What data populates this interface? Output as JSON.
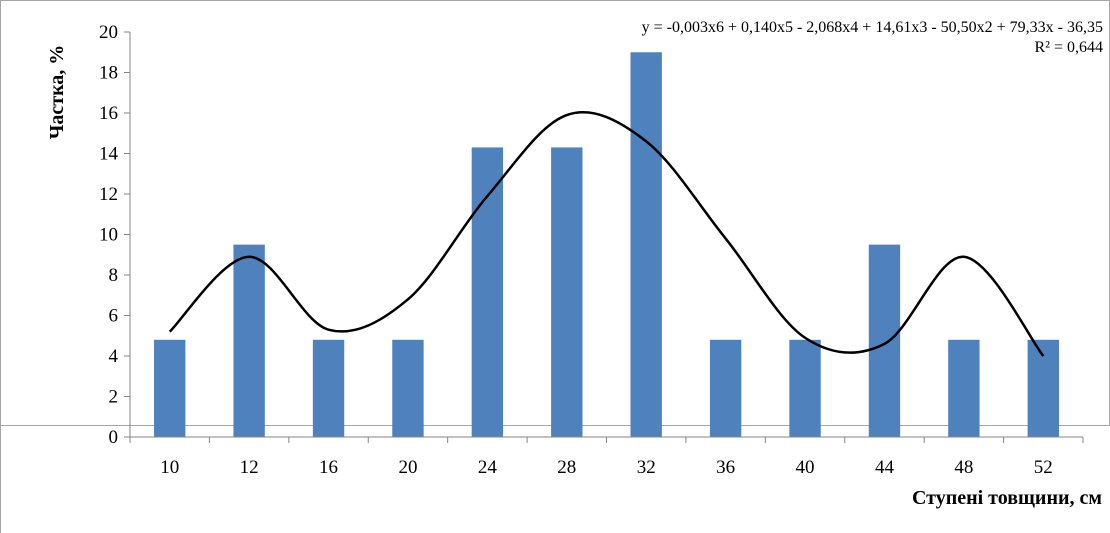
{
  "chart_data": {
    "type": "bar",
    "categories": [
      "10",
      "12",
      "16",
      "20",
      "24",
      "28",
      "32",
      "36",
      "40",
      "44",
      "48",
      "52"
    ],
    "values": [
      4.8,
      9.5,
      4.8,
      4.8,
      14.3,
      14.3,
      19.0,
      4.8,
      4.8,
      9.5,
      4.8,
      4.8
    ],
    "bar_color": "#4f81bd",
    "trendline": {
      "type": "polynomial",
      "order": 6,
      "color": "#000000",
      "equation": "y = -0,003x6 + 0,140x5 - 2,068x4 + 14,61x3 - 50,50x2 + 79,33x - 36,35",
      "r2_text": "R² = 0,644",
      "values": [
        5.2,
        8.9,
        5.3,
        6.8,
        11.9,
        15.9,
        14.6,
        9.8,
        4.9,
        4.6,
        8.9,
        4.0
      ]
    },
    "xlabel": "Ступені товщини, см",
    "ylabel": "Частка, %",
    "ylim": [
      0,
      20
    ],
    "yticks": [
      0,
      2,
      4,
      6,
      8,
      10,
      12,
      14,
      16,
      18,
      20
    ],
    "grid": false,
    "legend": "none"
  }
}
